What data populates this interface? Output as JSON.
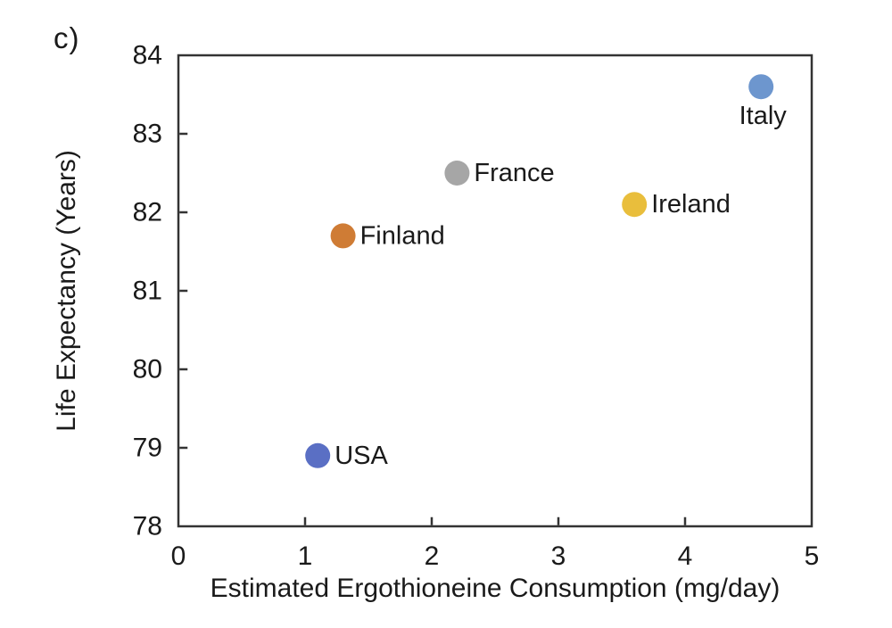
{
  "figure": {
    "panel_label": "c)"
  },
  "chart_data": {
    "type": "scatter",
    "title": "",
    "xlabel": "Estimated Ergothioneine Consumption (mg/day)",
    "ylabel": "Life Expectancy (Years)",
    "xlim": [
      0,
      5
    ],
    "ylim": [
      78,
      84
    ],
    "x_ticks": [
      0,
      1,
      2,
      3,
      4,
      5
    ],
    "y_ticks": [
      78,
      79,
      80,
      81,
      82,
      83,
      84
    ],
    "grid": false,
    "legend": "none",
    "points": [
      {
        "label": "USA",
        "x": 1.1,
        "y": 78.9,
        "color": "#5a6fc4",
        "label_side": "right"
      },
      {
        "label": "Finland",
        "x": 1.3,
        "y": 81.7,
        "color": "#cf7c35",
        "label_side": "right"
      },
      {
        "label": "France",
        "x": 2.2,
        "y": 82.5,
        "color": "#a6a6a6",
        "label_side": "right"
      },
      {
        "label": "Ireland",
        "x": 3.6,
        "y": 82.1,
        "color": "#e9be3c",
        "label_side": "right"
      },
      {
        "label": "Italy",
        "x": 4.6,
        "y": 83.6,
        "color": "#6d96ce",
        "label_side": "below"
      }
    ],
    "colors": {
      "axis": "#333333",
      "text": "#1a1a1a"
    }
  }
}
